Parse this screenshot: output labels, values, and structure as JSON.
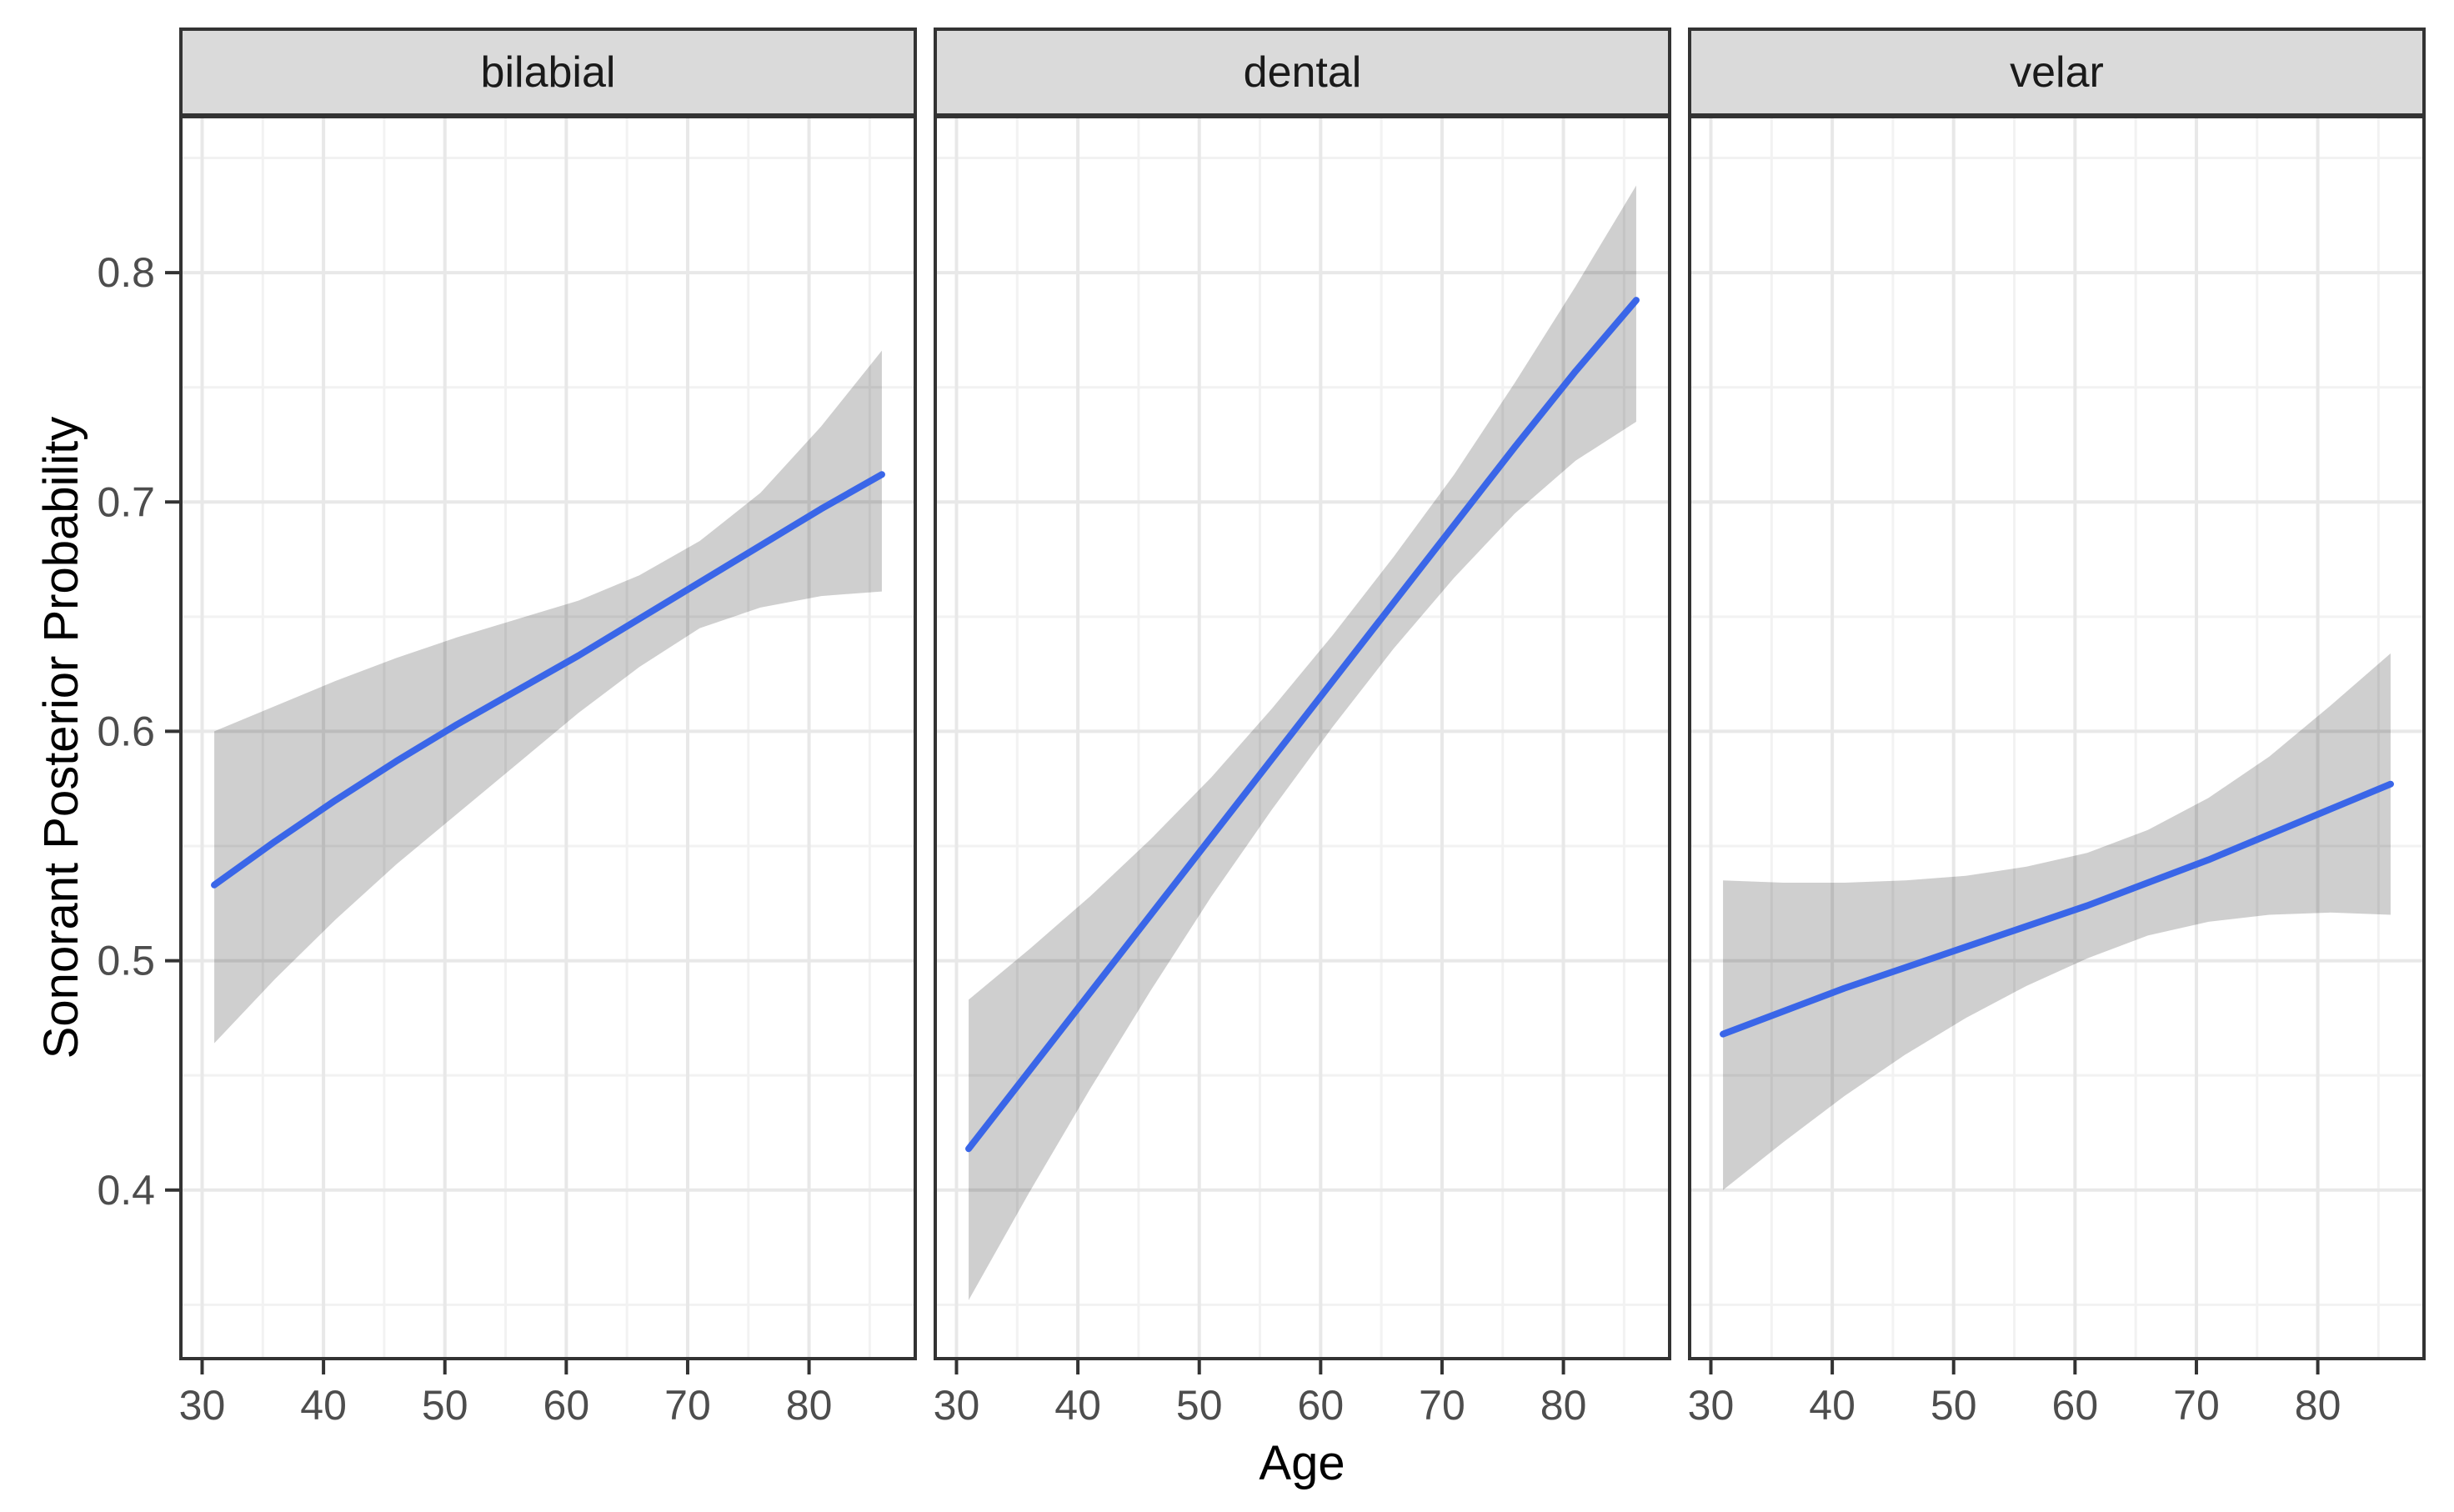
{
  "chart_data": {
    "type": "line",
    "description": "Faceted regression fit lines with confidence ribbons (ggplot style)",
    "xlabel": "Age",
    "ylabel": "Sonorant Posterior Probability",
    "legend": "none",
    "grid": "major+minor",
    "xlim": [
      28.25,
      88.75
    ],
    "ylim": [
      0.3265,
      0.868
    ],
    "x_ticks": [
      30,
      40,
      50,
      60,
      70,
      80
    ],
    "x_tick_labels": [
      "30",
      "40",
      "50",
      "60",
      "70",
      "80"
    ],
    "x_minor": [
      35,
      45,
      55,
      65,
      75,
      85
    ],
    "y_ticks": [
      0.4,
      0.5,
      0.6,
      0.7,
      0.8
    ],
    "y_tick_labels": [
      "0.4",
      "0.5",
      "0.6",
      "0.7",
      "0.8"
    ],
    "y_minor": [
      0.35,
      0.45,
      0.55,
      0.65,
      0.75,
      0.85
    ],
    "facets": [
      {
        "label": "bilabial",
        "x": [
          31,
          36,
          41,
          46,
          51,
          56,
          61,
          66,
          71,
          76,
          81,
          86
        ],
        "fit": [
          0.533,
          0.552,
          0.57,
          0.587,
          0.603,
          0.618,
          0.633,
          0.649,
          0.665,
          0.681,
          0.697,
          0.712
        ],
        "ci_upper": [
          0.6,
          0.611,
          0.622,
          0.632,
          0.641,
          0.649,
          0.657,
          0.668,
          0.683,
          0.704,
          0.733,
          0.766
        ],
        "ci_lower": [
          0.464,
          0.492,
          0.518,
          0.542,
          0.564,
          0.586,
          0.608,
          0.628,
          0.645,
          0.654,
          0.659,
          0.661
        ]
      },
      {
        "label": "dental",
        "x": [
          31,
          36,
          41,
          46,
          51,
          56,
          61,
          66,
          71,
          76,
          81,
          86
        ],
        "fit": [
          0.418,
          0.452,
          0.486,
          0.52,
          0.554,
          0.588,
          0.622,
          0.656,
          0.69,
          0.724,
          0.757,
          0.788
        ],
        "ci_upper": [
          0.483,
          0.505,
          0.528,
          0.553,
          0.58,
          0.61,
          0.642,
          0.676,
          0.712,
          0.752,
          0.794,
          0.838
        ],
        "ci_lower": [
          0.352,
          0.399,
          0.444,
          0.487,
          0.528,
          0.566,
          0.602,
          0.636,
          0.667,
          0.695,
          0.718,
          0.735
        ]
      },
      {
        "label": "velar",
        "x": [
          31,
          36,
          41,
          46,
          51,
          56,
          61,
          66,
          71,
          76,
          81,
          86
        ],
        "fit": [
          0.468,
          0.478,
          0.488,
          0.497,
          0.506,
          0.515,
          0.524,
          0.534,
          0.544,
          0.555,
          0.566,
          0.577
        ],
        "ci_upper": [
          0.535,
          0.534,
          0.534,
          0.535,
          0.537,
          0.541,
          0.547,
          0.557,
          0.571,
          0.589,
          0.611,
          0.634
        ],
        "ci_lower": [
          0.4,
          0.421,
          0.441,
          0.459,
          0.475,
          0.489,
          0.501,
          0.511,
          0.517,
          0.52,
          0.521,
          0.52
        ]
      }
    ],
    "style": {
      "line_color": "#3a66e8",
      "band_color": "#000000",
      "band_opacity": 0.19,
      "strip_fill": "#dadada",
      "strip_text_color": "#1a1a1a",
      "panel_border": "#333333",
      "grid_major": "#e8e8e8",
      "grid_minor": "#f2f2f2",
      "tick_mark": "#333333",
      "tick_label_color": "#4d4d4d",
      "axis_title_color": "#000000",
      "background": "#ffffff"
    }
  }
}
